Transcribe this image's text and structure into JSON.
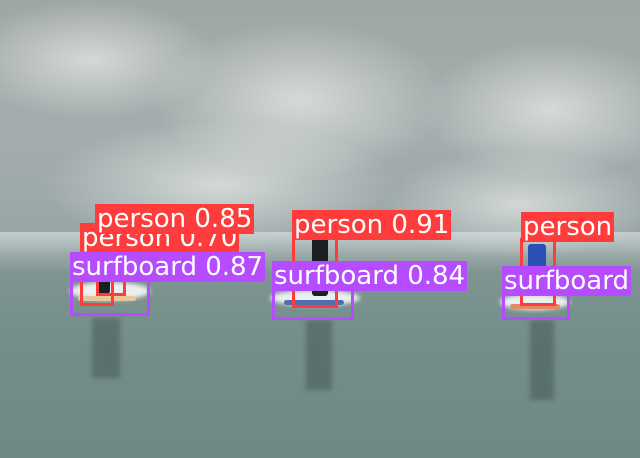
{
  "image": {
    "scene": "ocean-surf",
    "colors": {
      "person_box": "#ff3b3b",
      "surfboard_box": "#b54cff"
    }
  },
  "detections": [
    {
      "label_text": "person 0.85"
    },
    {
      "label_text": "person 0.70"
    },
    {
      "label_text": "surfboard 0.87"
    },
    {
      "label_text": "person 0.91"
    },
    {
      "label_text": "surfboard 0.84"
    },
    {
      "label_text": "person"
    },
    {
      "label_text": "surfboard"
    }
  ]
}
